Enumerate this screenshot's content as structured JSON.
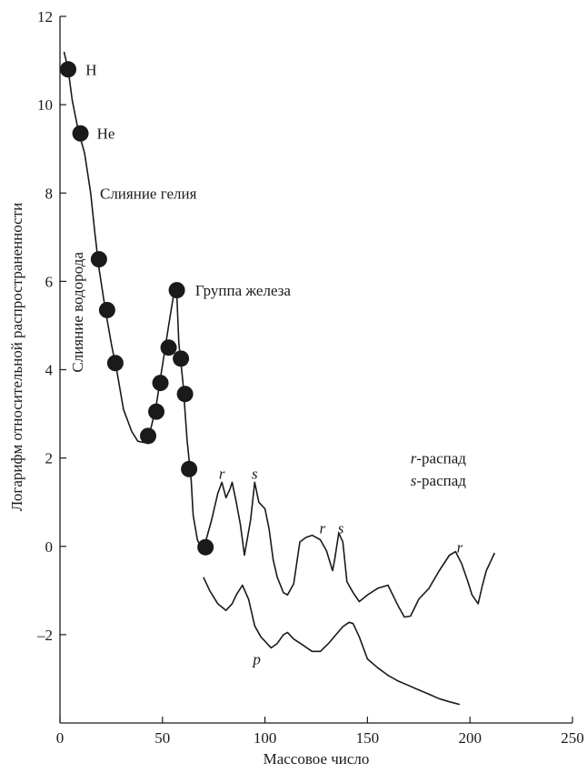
{
  "chart_data": {
    "type": "line",
    "xlabel": "Массовое число",
    "ylabel": "Логарифм относительной распространенности",
    "xlim": [
      0,
      250
    ],
    "ylim": [
      -4,
      12
    ],
    "xticks": [
      0,
      50,
      100,
      150,
      200,
      250
    ],
    "yticks": [
      {
        "value": 12,
        "label": "12"
      },
      {
        "value": 10,
        "label": "10"
      },
      {
        "value": 8,
        "label": "8"
      },
      {
        "value": 6,
        "label": "6"
      },
      {
        "value": 4,
        "label": "4"
      },
      {
        "value": 2,
        "label": "2"
      },
      {
        "value": 0,
        "label": "0"
      },
      {
        "value": -2,
        "label": "–2"
      }
    ],
    "grid": false,
    "series": [
      {
        "values": [
          [
            2,
            11.2
          ],
          [
            4,
            10.8
          ],
          [
            6,
            10.1
          ],
          [
            9,
            9.4
          ],
          [
            12,
            8.9
          ],
          [
            15,
            8.0
          ],
          [
            17,
            7.1
          ],
          [
            19,
            6.3
          ],
          [
            22,
            5.4
          ],
          [
            25,
            4.6
          ],
          [
            28,
            3.9
          ],
          [
            31,
            3.1
          ],
          [
            35,
            2.6
          ],
          [
            38,
            2.38
          ],
          [
            41,
            2.35
          ],
          [
            44,
            2.6
          ],
          [
            47,
            3.2
          ],
          [
            50,
            4.1
          ],
          [
            53,
            5.0
          ],
          [
            56,
            5.85
          ],
          [
            57,
            5.7
          ],
          [
            58,
            4.6
          ],
          [
            60,
            3.7
          ],
          [
            62,
            2.4
          ],
          [
            64,
            1.5
          ],
          [
            65,
            0.7
          ],
          [
            67,
            0.15
          ],
          [
            69,
            -0.05
          ],
          [
            71,
            0.1
          ],
          [
            74,
            0.6
          ],
          [
            77,
            1.2
          ],
          [
            79,
            1.45
          ],
          [
            81,
            1.1
          ],
          [
            83,
            1.3
          ],
          [
            84,
            1.45
          ],
          [
            86,
            1.0
          ],
          [
            88,
            0.5
          ],
          [
            90,
            -0.2
          ],
          [
            93,
            0.6
          ],
          [
            95,
            1.45
          ],
          [
            97,
            1.0
          ],
          [
            100,
            0.85
          ],
          [
            102,
            0.4
          ],
          [
            104,
            -0.3
          ],
          [
            106,
            -0.7
          ],
          [
            109,
            -1.05
          ],
          [
            111,
            -1.1
          ],
          [
            114,
            -0.85
          ],
          [
            117,
            0.1
          ],
          [
            120,
            0.2
          ],
          [
            123,
            0.25
          ],
          [
            127,
            0.15
          ],
          [
            130,
            -0.1
          ],
          [
            133,
            -0.55
          ],
          [
            134,
            -0.3
          ],
          [
            136,
            0.3
          ],
          [
            138,
            0.1
          ],
          [
            140,
            -0.8
          ],
          [
            143,
            -1.05
          ],
          [
            146,
            -1.25
          ],
          [
            150,
            -1.1
          ],
          [
            155,
            -0.95
          ],
          [
            160,
            -0.88
          ],
          [
            165,
            -1.35
          ],
          [
            168,
            -1.6
          ],
          [
            171,
            -1.58
          ],
          [
            175,
            -1.2
          ],
          [
            180,
            -0.95
          ],
          [
            185,
            -0.55
          ],
          [
            190,
            -0.2
          ],
          [
            193,
            -0.12
          ],
          [
            196,
            -0.4
          ],
          [
            199,
            -0.8
          ],
          [
            201,
            -1.1
          ],
          [
            204,
            -1.3
          ],
          [
            206,
            -0.9
          ],
          [
            208,
            -0.55
          ],
          [
            210,
            -0.35
          ],
          [
            212,
            -0.15
          ]
        ]
      },
      {
        "values": [
          [
            70,
            -0.7
          ],
          [
            73,
            -1.0
          ],
          [
            77,
            -1.3
          ],
          [
            81,
            -1.45
          ],
          [
            84,
            -1.3
          ],
          [
            86,
            -1.1
          ],
          [
            89,
            -0.88
          ],
          [
            92,
            -1.2
          ],
          [
            95,
            -1.8
          ],
          [
            98,
            -2.05
          ],
          [
            101,
            -2.2
          ],
          [
            103,
            -2.3
          ],
          [
            106,
            -2.2
          ],
          [
            109,
            -2.0
          ],
          [
            111,
            -1.95
          ],
          [
            114,
            -2.1
          ],
          [
            118,
            -2.22
          ],
          [
            123,
            -2.38
          ],
          [
            127,
            -2.38
          ],
          [
            131,
            -2.2
          ],
          [
            135,
            -1.98
          ],
          [
            138,
            -1.82
          ],
          [
            141,
            -1.72
          ],
          [
            143,
            -1.75
          ],
          [
            146,
            -2.05
          ],
          [
            150,
            -2.55
          ],
          [
            155,
            -2.75
          ],
          [
            160,
            -2.92
          ],
          [
            165,
            -3.05
          ],
          [
            170,
            -3.15
          ],
          [
            175,
            -3.25
          ],
          [
            180,
            -3.35
          ],
          [
            185,
            -3.45
          ],
          [
            190,
            -3.52
          ],
          [
            195,
            -3.58
          ]
        ]
      }
    ],
    "points": [
      {
        "x": 4,
        "y": 10.8
      },
      {
        "x": 10,
        "y": 9.35
      },
      {
        "x": 19,
        "y": 6.5
      },
      {
        "x": 23,
        "y": 5.35
      },
      {
        "x": 27,
        "y": 4.15
      },
      {
        "x": 43,
        "y": 2.5
      },
      {
        "x": 47,
        "y": 3.05
      },
      {
        "x": 49,
        "y": 3.7
      },
      {
        "x": 53,
        "y": 4.5
      },
      {
        "x": 57,
        "y": 5.8
      },
      {
        "x": 59,
        "y": 4.25
      },
      {
        "x": 61,
        "y": 3.45
      },
      {
        "x": 63,
        "y": 1.75
      },
      {
        "x": 71,
        "y": -0.02
      }
    ],
    "annotations": [
      {
        "text": "H",
        "x": 12.5,
        "y": 10.8,
        "style": "normal"
      },
      {
        "text": "He",
        "x": 18,
        "y": 9.35,
        "style": "normal"
      },
      {
        "text": "Слияние гелия",
        "x": 19.5,
        "y": 8.0,
        "style": "normal"
      },
      {
        "text": "Группа железа",
        "x": 66,
        "y": 5.8,
        "style": "normal"
      },
      {
        "text": "r",
        "x": 79,
        "y": 1.65,
        "style": "italic"
      },
      {
        "text": "s",
        "x": 95,
        "y": 1.65,
        "style": "italic"
      },
      {
        "text": "r",
        "x": 128,
        "y": 0.42,
        "style": "italic"
      },
      {
        "text": "s",
        "x": 137,
        "y": 0.42,
        "style": "italic"
      },
      {
        "text": "r",
        "x": 195,
        "y": -0.02,
        "style": "italic"
      },
      {
        "text": "p",
        "x": 96,
        "y": -2.55,
        "style": "italic"
      }
    ],
    "vertical_annotation": {
      "text": "Слияние водорода",
      "x": 11,
      "y": 5.3
    },
    "legend_labels": [
      {
        "mark": "r",
        "text": "-распад",
        "x": 171,
        "y": 2.0
      },
      {
        "mark": "s",
        "text": "-распад",
        "x": 171,
        "y": 1.5
      }
    ]
  }
}
